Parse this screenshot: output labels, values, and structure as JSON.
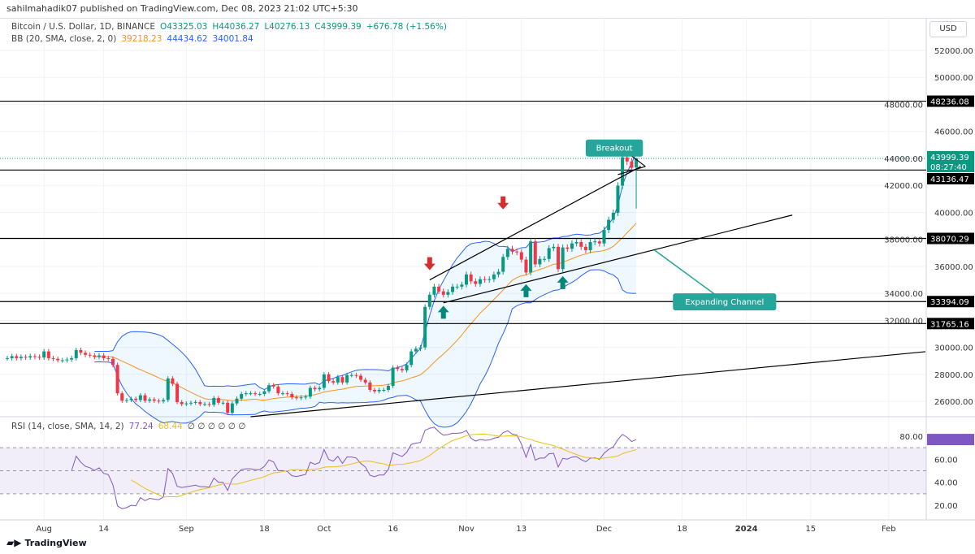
{
  "publisher": "sahilmahadik07 published on TradingView.com, Dec 08, 2023 21:02 UTC+5:30",
  "legend": {
    "symbol": "Bitcoin / U.S. Dollar, 1D, BINANCE",
    "open": "O43325.03",
    "high": "H44036.27",
    "low": "L40276.13",
    "close": "C43999.39",
    "change": "+676.78 (+1.56%)",
    "bb_label": "BB (20, SMA, close, 2, 0)",
    "bb_mid": "39218.23",
    "bb_upper": "44434.62",
    "bb_lower": "34001.84",
    "rsi_label": "RSI (14, close, SMA, 14, 2)",
    "rsi_value": "77.24",
    "rsi_sma": "68.44",
    "rsi_extra": "∅ ∅ ∅ ∅ ∅ ∅"
  },
  "currency": "USD",
  "countdown": "08:27:40",
  "brand": "TradingView",
  "colors": {
    "up": "#089981",
    "down": "#f23645",
    "bb_mid": "#f7931a",
    "bb_band": "#2962ff",
    "rsi": "#7e57c2",
    "rsi_sma": "#e8c01a",
    "annotation": "#26a69a"
  },
  "chart_data": {
    "type": "candlestick",
    "title": "Bitcoin / U.S. Dollar, 1D, BINANCE",
    "ylim": [
      25000,
      53500
    ],
    "y_ticks": [
      26000,
      28000,
      30000,
      32000,
      34000,
      36000,
      38000,
      40000,
      42000,
      44000,
      46000,
      48000,
      50000,
      52000
    ],
    "x_ticks": [
      {
        "date": "2023-08-01",
        "label": "Aug"
      },
      {
        "date": "2023-08-14",
        "label": "14"
      },
      {
        "date": "2023-09-01",
        "label": "Sep"
      },
      {
        "date": "2023-09-18",
        "label": "18"
      },
      {
        "date": "2023-10-01",
        "label": "Oct"
      },
      {
        "date": "2023-10-16",
        "label": "16"
      },
      {
        "date": "2023-11-01",
        "label": "Nov"
      },
      {
        "date": "2023-11-13",
        "label": "13"
      },
      {
        "date": "2023-12-01",
        "label": "Dec"
      },
      {
        "date": "2023-12-18",
        "label": "18"
      },
      {
        "date": "2024-01-01",
        "label": "2024"
      },
      {
        "date": "2024-01-15",
        "label": "15"
      },
      {
        "date": "2024-02-01",
        "label": "Feb"
      }
    ],
    "closes_by_month": [
      {
        "month": "2023-07",
        "first_day": 24,
        "closes": [
          29200,
          29350,
          29200,
          29300,
          29250,
          29350,
          29300,
          29250
        ]
      },
      {
        "month": "2023-08",
        "first_day": 1,
        "closes": [
          29700,
          29200,
          29150,
          29050,
          29050,
          29100,
          29200,
          29800,
          29600,
          29450,
          29400,
          29300,
          29400,
          29200,
          29150,
          28700,
          26600,
          26050,
          26100,
          26200,
          26100,
          26450,
          26050,
          26150,
          26050,
          26000,
          26100,
          27700,
          27300,
          25950,
          25800
        ]
      },
      {
        "month": "2023-09",
        "first_day": 1,
        "closes": [
          25850,
          25900,
          25950,
          25800,
          25800,
          25750,
          26250,
          25900,
          25900,
          25150,
          25850,
          26200,
          26550,
          26600,
          26600,
          26550,
          26550,
          26750,
          27200,
          27100,
          26600,
          26600,
          26550,
          26300,
          26250,
          26300,
          26350,
          27000,
          26900,
          27000
        ]
      },
      {
        "month": "2023-10",
        "first_day": 1,
        "closes": [
          28000,
          27500,
          27400,
          27800,
          27400,
          27950,
          27950,
          27900,
          27600,
          27400,
          26850,
          26750,
          26850,
          26850,
          27150,
          28500,
          28400,
          28300,
          28700,
          29700,
          29900,
          30000,
          33000,
          33900,
          34500,
          34150,
          33900,
          34100,
          34500,
          34500,
          34650
        ]
      },
      {
        "month": "2023-11",
        "first_day": 1,
        "closes": [
          35400,
          34900,
          34700,
          35050,
          35000,
          35050,
          35400,
          35600,
          36700,
          37300,
          37100,
          37050,
          36500,
          35550,
          37850,
          36150,
          36550,
          36550,
          37350,
          37450,
          35800,
          37400,
          37300,
          37700,
          37800,
          37450,
          37200,
          37800,
          37850,
          37700
        ]
      },
      {
        "month": "2023-12",
        "first_day": 1,
        "closes": [
          38700,
          39450,
          39970,
          41980,
          44080,
          43770,
          43300,
          43999.39
        ]
      }
    ],
    "last_candle": {
      "open": 43325.03,
      "high": 44036.27,
      "low": 40276.13,
      "close": 43999.39
    },
    "horizontal_levels": [
      48236.08,
      43136.47,
      38070.29,
      33394.09,
      31765.16
    ],
    "last_price": "43999.39",
    "level_labels": [
      "48236.08",
      "43136.47",
      "38070.29",
      "33394.09",
      "31765.16"
    ],
    "trendlines": [
      {
        "from": [
          "2023-10-24",
          35000
        ],
        "to": [
          "2023-12-09",
          43400
        ]
      },
      {
        "from": [
          "2023-10-27",
          33300
        ],
        "to": [
          "2024-01-11",
          39800
        ]
      },
      {
        "from": [
          "2023-09-15",
          24864
        ],
        "to": [
          "2024-02-09",
          29680
        ]
      },
      {
        "from": [
          "2023-12-05",
          44700
        ],
        "to": [
          "2023-12-10",
          43400
        ]
      },
      {
        "from": [
          "2023-12-04",
          42800
        ],
        "to": [
          "2023-12-10",
          43400
        ]
      }
    ],
    "annotations": [
      {
        "text": "Breakout",
        "date": "2023-11-27",
        "price": 45400,
        "pointer": [
          "2023-12-04",
          44500
        ]
      },
      {
        "text": "Expanding Channel",
        "date": "2023-12-16",
        "price": 34000,
        "pointer": [
          "2023-12-12",
          37200
        ]
      }
    ],
    "arrows": [
      {
        "dir": "down",
        "date": "2023-10-24",
        "price": 36200
      },
      {
        "dir": "down",
        "date": "2023-11-09",
        "price": 40700
      },
      {
        "dir": "up",
        "date": "2023-10-27",
        "price": 32600
      },
      {
        "dir": "up",
        "date": "2023-11-14",
        "price": 34200
      },
      {
        "dir": "up",
        "date": "2023-11-22",
        "price": 34800
      }
    ],
    "indicators": {
      "bb": {
        "length": 20,
        "mult": 2
      },
      "rsi": {
        "length": 14,
        "sma": 14,
        "bands": [
          70,
          50,
          30
        ],
        "ylim": [
          10,
          90
        ],
        "y_ticks": [
          20,
          40,
          60,
          80
        ]
      }
    }
  }
}
